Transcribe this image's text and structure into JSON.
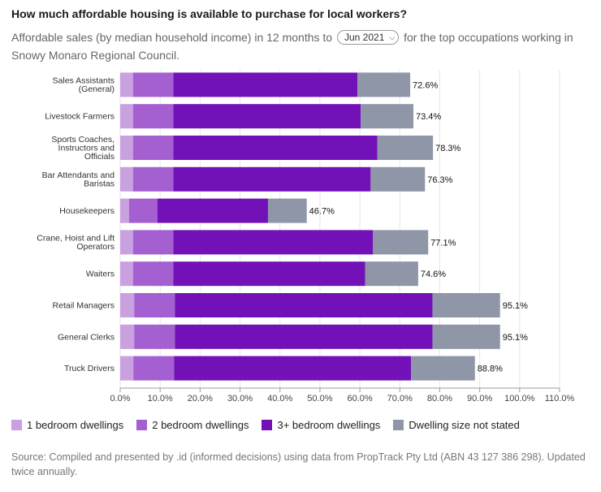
{
  "header": {
    "title": "How much affordable housing is available to purchase for local workers?",
    "subtitle_pre": "Affordable sales (by median household income) in 12 months to",
    "period": "Jun 2021",
    "subtitle_post": "for the top occupations working in Snowy Monaro Regional Council."
  },
  "colors": {
    "bed1": "#c9a0e0",
    "bed2": "#a45fd1",
    "bed3": "#7311b8",
    "notstated": "#8e96a8",
    "grid": "#e6e6e6"
  },
  "chart_data": {
    "type": "bar",
    "orientation": "horizontal",
    "stacked": true,
    "categories": [
      "Sales Assistants (General)",
      "Livestock Farmers",
      "Sports Coaches, Instructors and Officials",
      "Bar Attendants and Baristas",
      "Housekeepers",
      "Crane, Hoist and Lift Operators",
      "Waiters",
      "Retail Managers",
      "General Clerks",
      "Truck Drivers"
    ],
    "category_lines": [
      [
        "Sales Assistants",
        "(General)"
      ],
      [
        "Livestock Farmers"
      ],
      [
        "Sports Coaches,",
        "Instructors and",
        "Officials"
      ],
      [
        "Bar Attendants and",
        "Baristas"
      ],
      [
        "Housekeepers"
      ],
      [
        "Crane, Hoist and Lift",
        "Operators"
      ],
      [
        "Waiters"
      ],
      [
        "Retail Managers"
      ],
      [
        "General Clerks"
      ],
      [
        "Truck Drivers"
      ]
    ],
    "series": [
      {
        "name": "1 bedroom dwellings",
        "values": [
          3.2,
          3.2,
          3.2,
          3.2,
          2.2,
          3.2,
          3.2,
          3.5,
          3.5,
          3.3
        ]
      },
      {
        "name": "2 bedroom dwellings",
        "values": [
          10.1,
          10.1,
          10.1,
          10.1,
          7.1,
          10.1,
          10.1,
          10.2,
          10.2,
          10.2
        ]
      },
      {
        "name": "3+ bedroom dwellings",
        "values": [
          46.1,
          46.9,
          51.1,
          49.4,
          27.7,
          50.0,
          48.0,
          64.5,
          64.5,
          59.3
        ]
      },
      {
        "name": "Dwelling size not stated",
        "values": [
          13.2,
          13.2,
          13.9,
          13.6,
          9.7,
          13.8,
          13.3,
          16.9,
          16.9,
          16.0
        ]
      }
    ],
    "totals": [
      "72.6%",
      "73.4%",
      "78.3%",
      "76.3%",
      "46.7%",
      "77.1%",
      "74.6%",
      "95.1%",
      "95.1%",
      "88.8%"
    ],
    "xlim": [
      0,
      110
    ],
    "xticks": [
      "0.0%",
      "10.0%",
      "20.0%",
      "30.0%",
      "40.0%",
      "50.0%",
      "60.0%",
      "70.0%",
      "80.0%",
      "90.0%",
      "100.0%",
      "110.0%"
    ],
    "grid": true,
    "legend": "bottom"
  },
  "source": "Source: Compiled and presented by .id (informed decisions) using data from PropTrack Pty Ltd (ABN 43 127 386 298). Updated twice annually."
}
